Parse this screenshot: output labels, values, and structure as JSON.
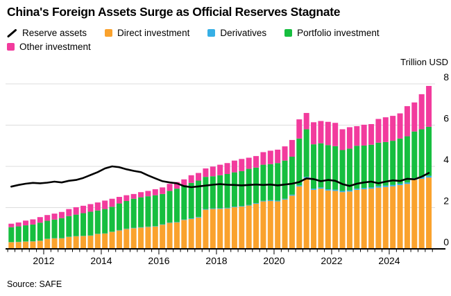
{
  "source": "Source: SAFE",
  "legend": {
    "items": [
      {
        "label": "Reserve assets",
        "color": "#000000",
        "shape": "line"
      },
      {
        "label": "Direct investment",
        "color": "#FAA22D",
        "shape": "square"
      },
      {
        "label": "Derivatives",
        "color": "#36AFE5",
        "shape": "square"
      },
      {
        "label": "Portfolio investment",
        "color": "#16BE3F",
        "shape": "square"
      },
      {
        "label": "Other investment",
        "color": "#F23B9D",
        "shape": "square"
      }
    ]
  },
  "chart_data": {
    "type": "bar",
    "subtype": "stacked-bar-with-line",
    "title": "China's Foreign Assets Surge as Official Reserves Stagnate",
    "ylabel": "Trillion USD",
    "xlabel": "",
    "ylim": [
      0,
      8
    ],
    "yticks": [
      0,
      2,
      4,
      6,
      8
    ],
    "grid": true,
    "legend_position": "top",
    "x_year_labels": [
      "2012",
      "2014",
      "2016",
      "2018",
      "2020",
      "2022",
      "2024"
    ],
    "x": [
      "2010 Q4",
      "2011 Q1",
      "2011 Q2",
      "2011 Q3",
      "2011 Q4",
      "2012 Q1",
      "2012 Q2",
      "2012 Q3",
      "2012 Q4",
      "2013 Q1",
      "2013 Q2",
      "2013 Q3",
      "2013 Q4",
      "2014 Q1",
      "2014 Q2",
      "2014 Q3",
      "2014 Q4",
      "2015 Q1",
      "2015 Q2",
      "2015 Q3",
      "2015 Q4",
      "2016 Q1",
      "2016 Q2",
      "2016 Q3",
      "2016 Q4",
      "2017 Q1",
      "2017 Q2",
      "2017 Q3",
      "2017 Q4",
      "2018 Q1",
      "2018 Q2",
      "2018 Q3",
      "2018 Q4",
      "2019 Q1",
      "2019 Q2",
      "2019 Q3",
      "2019 Q4",
      "2020 Q1",
      "2020 Q2",
      "2020 Q3",
      "2020 Q4",
      "2021 Q1",
      "2021 Q2",
      "2021 Q3",
      "2021 Q4",
      "2022 Q1",
      "2022 Q2",
      "2022 Q3",
      "2022 Q4",
      "2023 Q1",
      "2023 Q2",
      "2023 Q3",
      "2023 Q4",
      "2024 Q1",
      "2024 Q2",
      "2024 Q3",
      "2024 Q4",
      "2025 Q1",
      "2025 Q2"
    ],
    "series": [
      {
        "name": "Direct investment",
        "color": "#FAA22D",
        "values": [
          0.32,
          0.33,
          0.35,
          0.36,
          0.39,
          0.48,
          0.51,
          0.51,
          0.58,
          0.61,
          0.62,
          0.64,
          0.72,
          0.74,
          0.82,
          0.89,
          0.96,
          1.0,
          1.03,
          1.06,
          1.08,
          1.17,
          1.26,
          1.28,
          1.4,
          1.45,
          1.52,
          1.9,
          1.93,
          1.94,
          1.96,
          2.02,
          2.05,
          2.1,
          2.19,
          2.3,
          2.32,
          2.3,
          2.39,
          2.58,
          3.03,
          3.43,
          2.86,
          2.92,
          2.83,
          2.81,
          2.75,
          2.78,
          2.86,
          2.89,
          2.92,
          2.97,
          3.0,
          3.03,
          3.09,
          3.15,
          3.35,
          3.4,
          3.46
        ]
      },
      {
        "name": "Derivatives",
        "color": "#36AFE5",
        "values": [
          0.01,
          0.01,
          0.01,
          0.01,
          0.01,
          0.01,
          0.01,
          0.01,
          0.01,
          0.01,
          0.01,
          0.01,
          0.01,
          0.01,
          0.01,
          0.02,
          0.02,
          0.02,
          0.02,
          0.02,
          0.02,
          0.02,
          0.02,
          0.02,
          0.02,
          0.03,
          0.03,
          0.03,
          0.03,
          0.03,
          0.03,
          0.03,
          0.03,
          0.03,
          0.03,
          0.03,
          0.04,
          0.04,
          0.04,
          0.05,
          0.05,
          0.06,
          0.06,
          0.06,
          0.06,
          0.06,
          0.06,
          0.06,
          0.06,
          0.06,
          0.06,
          0.07,
          0.07,
          0.07,
          0.07,
          0.07,
          0.08,
          0.08,
          0.08
        ]
      },
      {
        "name": "Portfolio investment",
        "color": "#16BE3F",
        "values": [
          0.72,
          0.75,
          0.78,
          0.81,
          0.87,
          0.87,
          0.9,
          0.97,
          1.0,
          1.04,
          1.1,
          1.15,
          1.13,
          1.18,
          1.21,
          1.29,
          1.34,
          1.41,
          1.45,
          1.47,
          1.5,
          1.47,
          1.53,
          1.62,
          1.67,
          1.72,
          1.76,
          1.56,
          1.56,
          1.6,
          1.64,
          1.66,
          1.69,
          1.75,
          1.72,
          1.75,
          1.75,
          1.82,
          1.85,
          1.84,
          2.27,
          2.31,
          2.15,
          2.14,
          2.14,
          2.11,
          1.98,
          2.02,
          2.08,
          2.06,
          2.07,
          2.11,
          2.11,
          2.14,
          2.19,
          2.24,
          2.26,
          2.32,
          2.38
        ]
      },
      {
        "name": "Other investment",
        "color": "#F23B9D",
        "values": [
          0.17,
          0.19,
          0.23,
          0.25,
          0.27,
          0.28,
          0.29,
          0.3,
          0.34,
          0.36,
          0.36,
          0.37,
          0.39,
          0.41,
          0.39,
          0.32,
          0.28,
          0.23,
          0.25,
          0.26,
          0.29,
          0.32,
          0.34,
          0.32,
          0.28,
          0.37,
          0.37,
          0.41,
          0.47,
          0.51,
          0.53,
          0.57,
          0.59,
          0.54,
          0.56,
          0.61,
          0.65,
          0.65,
          0.69,
          0.81,
          0.93,
          0.79,
          1.07,
          1.08,
          1.13,
          1.13,
          1.01,
          1.04,
          0.95,
          1.01,
          1.0,
          1.15,
          1.2,
          1.21,
          1.22,
          1.46,
          1.41,
          1.7,
          1.98
        ]
      }
    ],
    "line_series": {
      "name": "Reserve assets",
      "color": "#000000",
      "values": [
        3.02,
        3.1,
        3.16,
        3.2,
        3.18,
        3.21,
        3.26,
        3.22,
        3.3,
        3.34,
        3.44,
        3.58,
        3.72,
        3.9,
        4.0,
        3.96,
        3.86,
        3.78,
        3.72,
        3.56,
        3.42,
        3.28,
        3.22,
        3.18,
        3.04,
        2.99,
        3.03,
        3.07,
        3.11,
        3.14,
        3.11,
        3.1,
        3.08,
        3.1,
        3.12,
        3.1,
        3.12,
        3.08,
        3.12,
        3.16,
        3.24,
        3.42,
        3.38,
        3.28,
        3.34,
        3.3,
        3.14,
        3.05,
        3.16,
        3.22,
        3.26,
        3.18,
        3.26,
        3.32,
        3.29,
        3.4,
        3.37,
        3.5,
        3.68
      ]
    },
    "colors": {
      "grid": "#DCDCDC",
      "axis": "#000000",
      "background": "#FFFFFF"
    }
  }
}
